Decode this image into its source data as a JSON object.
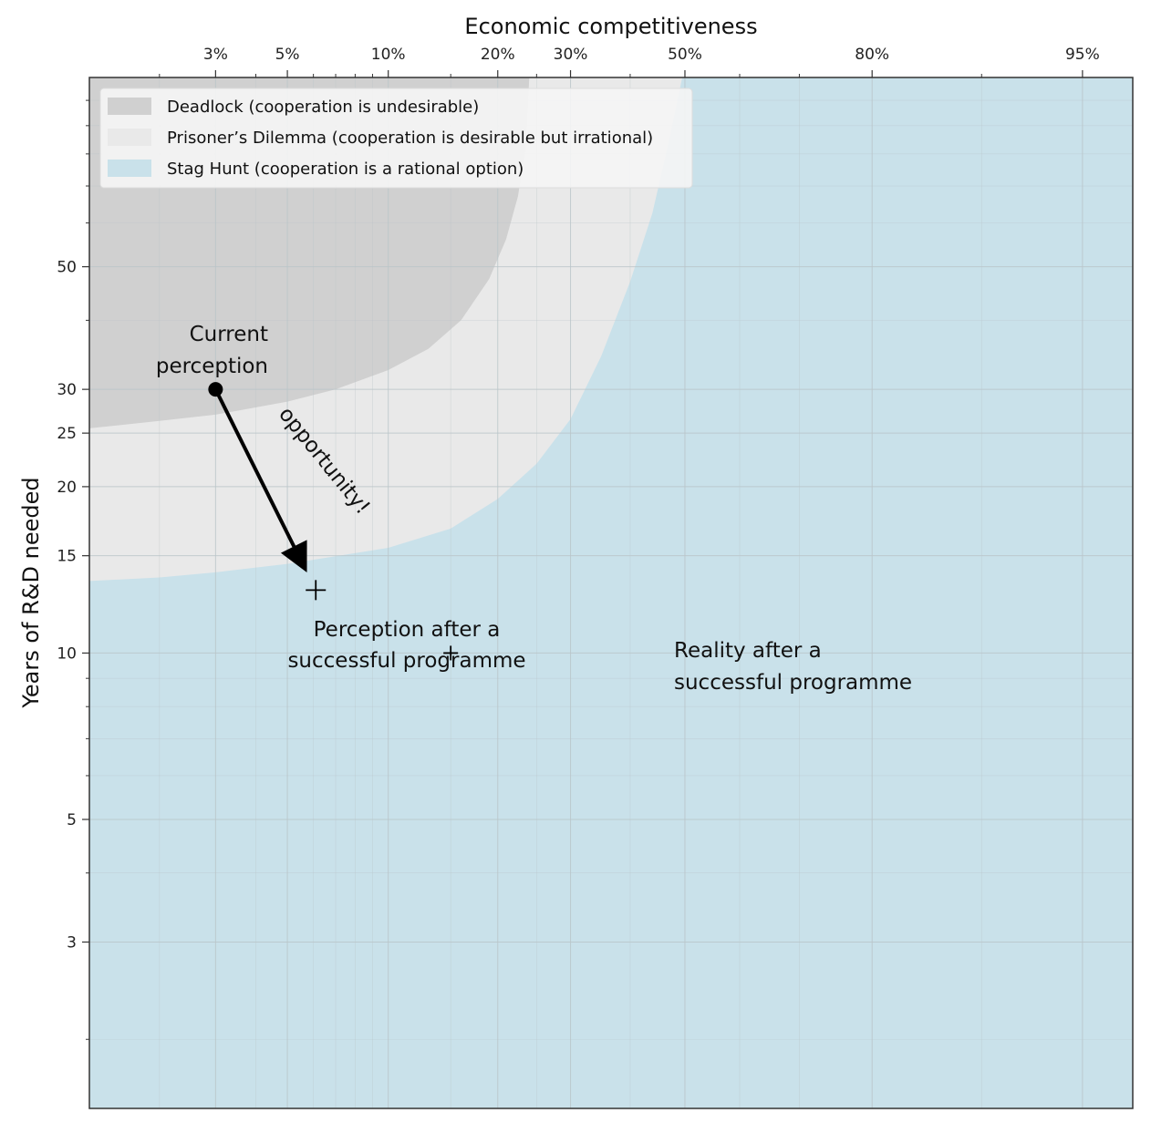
{
  "chart_data": {
    "type": "area",
    "xlabel": "Economic competitiveness",
    "ylabel": "Years of R&D needed",
    "x_scale": "logit",
    "y_scale": "log",
    "xlim": [
      0.012,
      0.965
    ],
    "ylim": [
      1.5,
      110
    ],
    "x_tick_labels": [
      {
        "value": 0.03,
        "label": "3%"
      },
      {
        "value": 0.05,
        "label": "5%"
      },
      {
        "value": 0.1,
        "label": "10%"
      },
      {
        "value": 0.2,
        "label": "20%"
      },
      {
        "value": 0.3,
        "label": "30%"
      },
      {
        "value": 0.5,
        "label": "50%"
      },
      {
        "value": 0.8,
        "label": "80%"
      },
      {
        "value": 0.95,
        "label": "95%"
      }
    ],
    "y_tick_labels": [
      {
        "value": 3,
        "label": "3"
      },
      {
        "value": 5,
        "label": "5"
      },
      {
        "value": 10,
        "label": "10"
      },
      {
        "value": 15,
        "label": "15"
      },
      {
        "value": 20,
        "label": "20"
      },
      {
        "value": 25,
        "label": "25"
      },
      {
        "value": 30,
        "label": "30"
      },
      {
        "value": 50,
        "label": "50"
      }
    ],
    "grid": true,
    "legend_position": "top-left",
    "legend": [
      {
        "label": "Deadlock (cooperation is undesirable)",
        "color": "#d0d0d0"
      },
      {
        "label": "Prisoner’s Dilemma (cooperation is desirable but irrational)",
        "color": "#e9e9e9"
      },
      {
        "label": "Stag Hunt (cooperation is a rational option)",
        "color": "#c9e1ea"
      }
    ],
    "regions": {
      "deadlock_boundary": [
        [
          0.012,
          25.5
        ],
        [
          0.02,
          26.3
        ],
        [
          0.03,
          27.0
        ],
        [
          0.05,
          28.5
        ],
        [
          0.07,
          30.0
        ],
        [
          0.1,
          32.5
        ],
        [
          0.13,
          35.5
        ],
        [
          0.16,
          40.0
        ],
        [
          0.19,
          47.5
        ],
        [
          0.21,
          56.0
        ],
        [
          0.225,
          67.0
        ],
        [
          0.235,
          82.0
        ],
        [
          0.24,
          110.0
        ]
      ],
      "stag_hunt_boundary": [
        [
          0.012,
          13.5
        ],
        [
          0.02,
          13.7
        ],
        [
          0.03,
          14.0
        ],
        [
          0.05,
          14.5
        ],
        [
          0.1,
          15.5
        ],
        [
          0.15,
          16.8
        ],
        [
          0.2,
          19.0
        ],
        [
          0.25,
          22.0
        ],
        [
          0.3,
          26.5
        ],
        [
          0.35,
          34.5
        ],
        [
          0.4,
          47.0
        ],
        [
          0.44,
          62.5
        ],
        [
          0.47,
          84.0
        ],
        [
          0.495,
          110.0
        ]
      ]
    },
    "points": [
      {
        "name": "Current perception",
        "x": 0.03,
        "y": 30,
        "marker": "dot"
      },
      {
        "name": "Perception after a successful programme",
        "x": 0.061,
        "y": 13,
        "marker": "plus"
      },
      {
        "name": "Reality after a successful programme",
        "x": 0.15,
        "y": 10,
        "marker": "plus"
      }
    ],
    "arrow": {
      "from": [
        0.03,
        30
      ],
      "to": [
        0.058,
        13.8
      ],
      "label": "opportunity!"
    },
    "annotations": {
      "current_line1": "Current",
      "current_line2": "perception",
      "after_line1": "Perception after a",
      "after_line2": "successful programme",
      "reality_line1": "Reality after a",
      "reality_line2": "successful programme"
    },
    "colors": {
      "deadlock": "#d0d0d0",
      "prisoners_dilemma": "#e9e9e9",
      "stag_hunt": "#c9e1ea",
      "grid": "#b9c4c8",
      "axis": "#333333"
    }
  }
}
